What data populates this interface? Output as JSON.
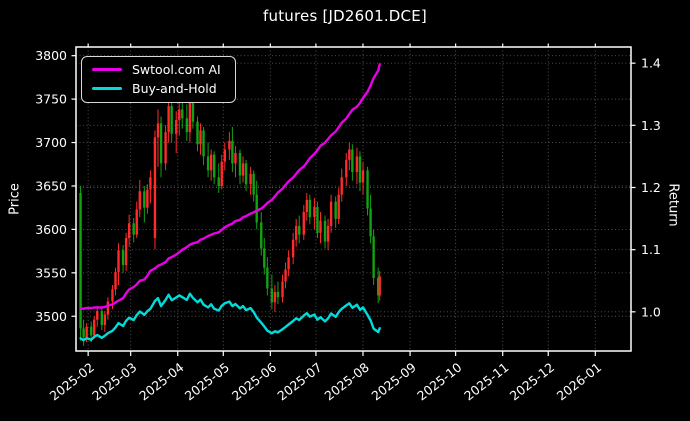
{
  "title": "futures [JD2601.DCE]",
  "axes": {
    "price_label": "Price",
    "return_label": "Return",
    "price_ticks": [
      3800,
      3750,
      3700,
      3650,
      3600,
      3550,
      3500
    ],
    "return_ticks": [
      "1.4",
      "1.3",
      "1.2",
      "1.1",
      "1.0"
    ],
    "x_ticks": [
      {
        "label": "2025-02",
        "date": "2025-02-01"
      },
      {
        "label": "2025-03",
        "date": "2025-03-01"
      },
      {
        "label": "2025-04",
        "date": "2025-04-01"
      },
      {
        "label": "2025-05",
        "date": "2025-05-01"
      },
      {
        "label": "2025-06",
        "date": "2025-06-01"
      },
      {
        "label": "2025-07",
        "date": "2025-07-01"
      },
      {
        "label": "2025-08",
        "date": "2025-08-01"
      },
      {
        "label": "2025-09",
        "date": "2025-09-01"
      },
      {
        "label": "2025-10",
        "date": "2025-10-01"
      },
      {
        "label": "2025-11",
        "date": "2025-11-01"
      },
      {
        "label": "2025-12",
        "date": "2025-12-01"
      },
      {
        "label": "2026-01",
        "date": "2026-01-01"
      }
    ],
    "price_ylim": [
      3460,
      3810
    ],
    "return_ylim": [
      0.937,
      1.426
    ],
    "x_start": "2025-01-24",
    "x_span_days": 365.5,
    "grid": true
  },
  "legend": {
    "position": "upper left",
    "items": [
      {
        "key": "ai",
        "label": "Swtool.com AI",
        "color": "#e800e8"
      },
      {
        "key": "buyhold",
        "label": "Buy-and-Hold",
        "color": "#00dcdc"
      }
    ]
  },
  "colors": {
    "background": "#000000",
    "foreground": "#ffffff",
    "spine": "#ffffff",
    "grid": "#aaaaaa",
    "candle_up": "#ff2b2b",
    "candle_down": "#12a312",
    "ai_line": "#e800e8",
    "buyhold_line": "#00dcdc"
  },
  "chart_data": {
    "type": "candlestick+line",
    "title": "futures [JD2601.DCE]",
    "xlabel": "",
    "ylabel": "Price",
    "y2label": "Return",
    "legend_entries": [
      "Swtool.com AI",
      "Buy-and-Hold"
    ],
    "candles": {
      "columns": [
        "date",
        "open",
        "high",
        "low",
        "close"
      ],
      "rows": [
        [
          "2025-01-27",
          3642,
          3650,
          3472,
          3486
        ],
        [
          "2025-01-29",
          3486,
          3496,
          3466,
          3476
        ],
        [
          "2025-01-31",
          3476,
          3492,
          3470,
          3488
        ],
        [
          "2025-02-03",
          3488,
          3494,
          3470,
          3478
        ],
        [
          "2025-02-05",
          3478,
          3500,
          3474,
          3496
        ],
        [
          "2025-02-07",
          3496,
          3512,
          3488,
          3506
        ],
        [
          "2025-02-10",
          3506,
          3510,
          3484,
          3490
        ],
        [
          "2025-02-12",
          3490,
          3506,
          3482,
          3502
        ],
        [
          "2025-02-14",
          3502,
          3522,
          3496,
          3517
        ],
        [
          "2025-02-17",
          3517,
          3536,
          3508,
          3531
        ],
        [
          "2025-02-19",
          3531,
          3556,
          3524,
          3551
        ],
        [
          "2025-02-21",
          3551,
          3584,
          3536,
          3576
        ],
        [
          "2025-02-24",
          3576,
          3582,
          3550,
          3559
        ],
        [
          "2025-02-26",
          3559,
          3596,
          3552,
          3590
        ],
        [
          "2025-02-28",
          3590,
          3617,
          3580,
          3607
        ],
        [
          "2025-03-03",
          3607,
          3613,
          3585,
          3594
        ],
        [
          "2025-03-05",
          3594,
          3632,
          3590,
          3623
        ],
        [
          "2025-03-07",
          3623,
          3657,
          3614,
          3644
        ],
        [
          "2025-03-10",
          3644,
          3650,
          3608,
          3625
        ],
        [
          "2025-03-12",
          3625,
          3652,
          3618,
          3646
        ],
        [
          "2025-03-14",
          3646,
          3668,
          3630,
          3660
        ],
        [
          "2025-03-17",
          3590,
          3714,
          3577,
          3706
        ],
        [
          "2025-03-19",
          3706,
          3738,
          3672,
          3722
        ],
        [
          "2025-03-21",
          3722,
          3730,
          3660,
          3676
        ],
        [
          "2025-03-24",
          3676,
          3720,
          3668,
          3712
        ],
        [
          "2025-03-26",
          3712,
          3752,
          3700,
          3742
        ],
        [
          "2025-03-28",
          3742,
          3756,
          3700,
          3710
        ],
        [
          "2025-03-31",
          3710,
          3736,
          3688,
          3726
        ],
        [
          "2025-04-02",
          3726,
          3748,
          3708,
          3738
        ],
        [
          "2025-04-04",
          3738,
          3760,
          3716,
          3728
        ],
        [
          "2025-04-07",
          3728,
          3744,
          3702,
          3712
        ],
        [
          "2025-04-09",
          3712,
          3756,
          3700,
          3748
        ],
        [
          "2025-04-11",
          3748,
          3752,
          3716,
          3724
        ],
        [
          "2025-04-14",
          3724,
          3730,
          3690,
          3698
        ],
        [
          "2025-04-16",
          3698,
          3722,
          3686,
          3714
        ],
        [
          "2025-04-18",
          3714,
          3718,
          3674,
          3684
        ],
        [
          "2025-04-21",
          3684,
          3700,
          3660,
          3668
        ],
        [
          "2025-04-23",
          3668,
          3692,
          3656,
          3686
        ],
        [
          "2025-04-25",
          3686,
          3690,
          3652,
          3660
        ],
        [
          "2025-04-28",
          3660,
          3676,
          3642,
          3650
        ],
        [
          "2025-04-30",
          3650,
          3686,
          3646,
          3678
        ],
        [
          "2025-05-02",
          3678,
          3700,
          3668,
          3692
        ],
        [
          "2025-05-05",
          3692,
          3712,
          3680,
          3702
        ],
        [
          "2025-05-07",
          3702,
          3718,
          3666,
          3676
        ],
        [
          "2025-05-09",
          3676,
          3696,
          3660,
          3688
        ],
        [
          "2025-05-12",
          3688,
          3692,
          3652,
          3662
        ],
        [
          "2025-05-14",
          3662,
          3684,
          3654,
          3676
        ],
        [
          "2025-05-16",
          3676,
          3680,
          3644,
          3652
        ],
        [
          "2025-05-19",
          3652,
          3672,
          3640,
          3664
        ],
        [
          "2025-05-21",
          3664,
          3668,
          3632,
          3640
        ],
        [
          "2025-05-23",
          3640,
          3656,
          3600,
          3608
        ],
        [
          "2025-05-26",
          3608,
          3620,
          3570,
          3578
        ],
        [
          "2025-05-28",
          3578,
          3590,
          3548,
          3556
        ],
        [
          "2025-05-30",
          3556,
          3568,
          3524,
          3532
        ],
        [
          "2025-06-02",
          3532,
          3548,
          3508,
          3516
        ],
        [
          "2025-06-04",
          3516,
          3536,
          3505,
          3528
        ],
        [
          "2025-06-06",
          3528,
          3540,
          3514,
          3522
        ],
        [
          "2025-06-09",
          3522,
          3548,
          3516,
          3540
        ],
        [
          "2025-06-11",
          3540,
          3562,
          3532,
          3554
        ],
        [
          "2025-06-13",
          3554,
          3576,
          3546,
          3568
        ],
        [
          "2025-06-16",
          3568,
          3596,
          3560,
          3588
        ],
        [
          "2025-06-18",
          3588,
          3612,
          3580,
          3604
        ],
        [
          "2025-06-20",
          3604,
          3616,
          3584,
          3594
        ],
        [
          "2025-06-23",
          3594,
          3628,
          3588,
          3620
        ],
        [
          "2025-06-25",
          3620,
          3642,
          3610,
          3634
        ],
        [
          "2025-06-27",
          3634,
          3640,
          3606,
          3614
        ],
        [
          "2025-06-30",
          3614,
          3636,
          3600,
          3626
        ],
        [
          "2025-07-02",
          3626,
          3632,
          3590,
          3596
        ],
        [
          "2025-07-04",
          3596,
          3620,
          3584,
          3610
        ],
        [
          "2025-07-07",
          3610,
          3616,
          3578,
          3586
        ],
        [
          "2025-07-09",
          3586,
          3612,
          3576,
          3604
        ],
        [
          "2025-07-11",
          3604,
          3640,
          3596,
          3632
        ],
        [
          "2025-07-14",
          3632,
          3638,
          3602,
          3612
        ],
        [
          "2025-07-16",
          3612,
          3648,
          3606,
          3640
        ],
        [
          "2025-07-18",
          3640,
          3670,
          3632,
          3660
        ],
        [
          "2025-07-21",
          3660,
          3688,
          3650,
          3680
        ],
        [
          "2025-07-23",
          3680,
          3700,
          3668,
          3692
        ],
        [
          "2025-07-25",
          3692,
          3698,
          3656,
          3666
        ],
        [
          "2025-07-28",
          3666,
          3694,
          3652,
          3684
        ],
        [
          "2025-07-30",
          3684,
          3690,
          3644,
          3654
        ],
        [
          "2025-08-01",
          3654,
          3678,
          3640,
          3668
        ],
        [
          "2025-08-04",
          3668,
          3672,
          3616,
          3624
        ],
        [
          "2025-08-06",
          3624,
          3640,
          3584,
          3592
        ],
        [
          "2025-08-08",
          3592,
          3600,
          3536,
          3544
        ],
        [
          "2025-08-11",
          3544,
          3556,
          3515,
          3524
        ],
        [
          "2025-08-12",
          3524,
          3552,
          3518,
          3546
        ]
      ]
    },
    "series": [
      {
        "name": "Swtool.com AI",
        "axis": "return",
        "color": "#e800e8",
        "values": [
          1.005,
          1.005,
          1.006,
          1.006,
          1.007,
          1.007,
          1.007,
          1.008,
          1.01,
          1.012,
          1.015,
          1.018,
          1.022,
          1.03,
          1.036,
          1.04,
          1.044,
          1.05,
          1.052,
          1.058,
          1.066,
          1.07,
          1.074,
          1.076,
          1.08,
          1.086,
          1.088,
          1.092,
          1.096,
          1.1,
          1.104,
          1.108,
          1.11,
          1.112,
          1.116,
          1.118,
          1.122,
          1.124,
          1.126,
          1.128,
          1.132,
          1.136,
          1.14,
          1.142,
          1.146,
          1.148,
          1.152,
          1.154,
          1.158,
          1.16,
          1.163,
          1.166,
          1.17,
          1.175,
          1.18,
          1.186,
          1.192,
          1.198,
          1.204,
          1.21,
          1.216,
          1.222,
          1.228,
          1.234,
          1.24,
          1.247,
          1.254,
          1.26,
          1.267,
          1.272,
          1.278,
          1.284,
          1.29,
          1.297,
          1.304,
          1.311,
          1.318,
          1.325,
          1.33,
          1.336,
          1.344,
          1.354,
          1.364,
          1.376,
          1.388,
          1.398
        ]
      },
      {
        "name": "Buy-and-Hold",
        "axis": "return",
        "color": "#00dcdc",
        "values": [
          0.9572,
          0.9544,
          0.9577,
          0.955,
          0.9599,
          0.9627,
          0.9583,
          0.9616,
          0.9657,
          0.9695,
          0.975,
          0.9819,
          0.9772,
          0.9857,
          0.9904,
          0.9868,
          0.9948,
          1.0005,
          0.9953,
          1.0011,
          1.0049,
          1.0176,
          1.022,
          1.0093,
          1.0192,
          1.0275,
          1.0187,
          1.0231,
          1.0264,
          1.0236,
          1.0192,
          1.0291,
          1.0225,
          1.0154,
          1.0198,
          1.0115,
          1.0071,
          1.0121,
          1.0049,
          1.0022,
          1.0099,
          1.0137,
          1.0165,
          1.0093,
          1.0126,
          1.0055,
          1.0093,
          1.0027,
          1.006,
          0.9995,
          0.9907,
          0.9824,
          0.9764,
          0.9698,
          0.9654,
          0.9687,
          0.9671,
          0.972,
          0.9758,
          0.9797,
          0.9852,
          0.9896,
          0.9868,
          0.994,
          0.9978,
          0.9923,
          0.9956,
          0.9874,
          0.9912,
          0.9846,
          0.9896,
          0.9973,
          0.9918,
          0.9995,
          1.0049,
          1.0104,
          1.0137,
          1.0066,
          1.0115,
          1.0033,
          1.0071,
          0.9951,
          0.9863,
          0.9731,
          0.9676,
          0.9736
        ]
      }
    ]
  }
}
